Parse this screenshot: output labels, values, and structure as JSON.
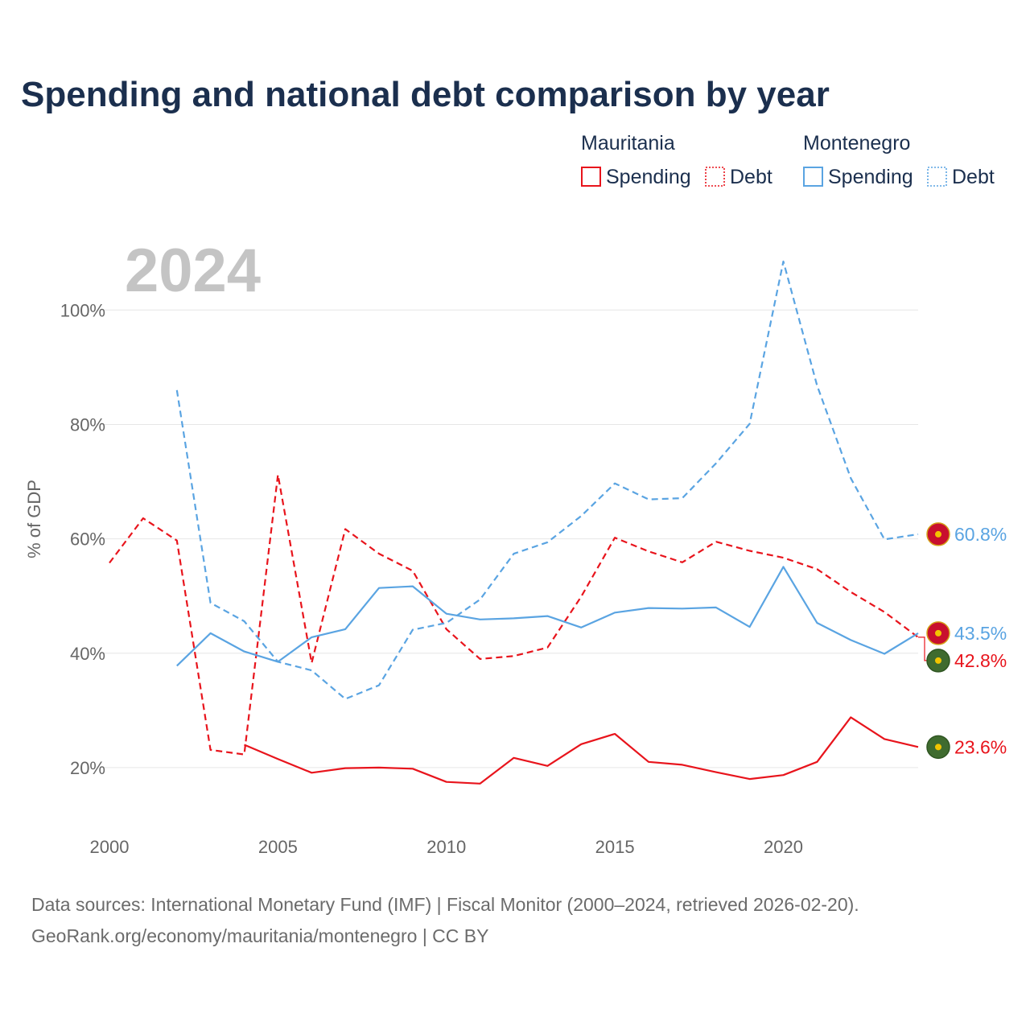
{
  "colors": {
    "mauritania": "#e8141c",
    "montenegro": "#5aa4e2",
    "title": "#1b2f4e",
    "grid": "#e6e6e6",
    "tick": "#666666",
    "year": "#c4c4c4",
    "source": "#6b6b6b"
  },
  "chart_data": {
    "type": "line",
    "title": "Spending and national debt comparison by year",
    "current_year": "2024",
    "ylabel": "% of GDP",
    "xlim": [
      2000,
      2024
    ],
    "ylim": [
      10,
      112
    ],
    "x_ticks": [
      2000,
      2005,
      2010,
      2015,
      2020
    ],
    "x_tick_labels": [
      "2000",
      "2005",
      "2010",
      "2015",
      "2020"
    ],
    "y_ticks": [
      20,
      40,
      60,
      80,
      100
    ],
    "y_tick_labels": [
      "20%",
      "40%",
      "60%",
      "80%",
      "100%"
    ],
    "legend": {
      "groups": [
        {
          "name": "Mauritania",
          "entries": [
            {
              "label": "Spending",
              "style": "solid"
            },
            {
              "label": "Debt",
              "style": "dotted"
            }
          ]
        },
        {
          "name": "Montenegro",
          "entries": [
            {
              "label": "Spending",
              "style": "solid"
            },
            {
              "label": "Debt",
              "style": "dotted"
            }
          ]
        }
      ]
    },
    "series": [
      {
        "name": "Mauritania Spending",
        "country": "mauritania",
        "dash": false,
        "x": [
          2004,
          2005,
          2006,
          2007,
          2008,
          2009,
          2010,
          2011,
          2012,
          2013,
          2014,
          2015,
          2016,
          2017,
          2018,
          2019,
          2020,
          2021,
          2022,
          2023,
          2024
        ],
        "values": [
          24.0,
          21.5,
          19.1,
          19.9,
          20.0,
          19.8,
          17.5,
          17.2,
          21.7,
          20.3,
          24.1,
          25.9,
          21.0,
          20.5,
          19.2,
          18.0,
          18.7,
          21.0,
          28.8,
          25.0,
          23.6
        ],
        "end_label": "23.6%"
      },
      {
        "name": "Mauritania Debt",
        "country": "mauritania",
        "dash": true,
        "x": [
          2000,
          2001,
          2002,
          2003,
          2004,
          2005,
          2006,
          2007,
          2008,
          2009,
          2010,
          2011,
          2012,
          2013,
          2014,
          2015,
          2016,
          2017,
          2018,
          2019,
          2020,
          2021,
          2022,
          2023,
          2024
        ],
        "values": [
          55.8,
          63.6,
          59.7,
          23.1,
          22.3,
          71.2,
          38.3,
          61.7,
          57.4,
          54.4,
          44.2,
          39.0,
          39.5,
          41.0,
          49.9,
          60.2,
          57.8,
          55.9,
          59.5,
          57.9,
          56.7,
          54.7,
          50.7,
          47.2,
          42.8
        ],
        "end_label": "42.8%"
      },
      {
        "name": "Montenegro Spending",
        "country": "montenegro",
        "dash": false,
        "x": [
          2002,
          2003,
          2004,
          2005,
          2006,
          2007,
          2008,
          2009,
          2010,
          2011,
          2012,
          2013,
          2014,
          2015,
          2016,
          2017,
          2018,
          2019,
          2020,
          2021,
          2022,
          2023,
          2024
        ],
        "values": [
          37.8,
          43.5,
          40.3,
          38.5,
          42.8,
          44.2,
          51.4,
          51.7,
          46.9,
          45.9,
          46.1,
          46.5,
          44.5,
          47.1,
          47.9,
          47.8,
          48.0,
          44.6,
          55.1,
          45.3,
          42.3,
          39.9,
          43.5
        ],
        "end_label": "43.5%"
      },
      {
        "name": "Montenegro Debt",
        "country": "montenegro",
        "dash": true,
        "x": [
          2002,
          2003,
          2004,
          2005,
          2006,
          2007,
          2008,
          2009,
          2010,
          2011,
          2012,
          2013,
          2014,
          2015,
          2016,
          2017,
          2018,
          2019,
          2020,
          2021,
          2022,
          2023,
          2024
        ],
        "values": [
          86.0,
          48.8,
          45.6,
          38.5,
          37.0,
          32.0,
          34.4,
          44.1,
          45.3,
          49.4,
          57.4,
          59.4,
          64.0,
          69.7,
          66.9,
          67.1,
          73.2,
          80.1,
          108.5,
          86.8,
          70.6,
          59.9,
          60.8
        ],
        "end_label": "60.8%"
      }
    ]
  },
  "source": {
    "line1": "Data sources: International Monetary Fund (IMF) | Fiscal Monitor (2000–2024, retrieved 2026-02-20).",
    "line2": "GeoRank.org/economy/mauritania/montenegro | CC BY"
  }
}
